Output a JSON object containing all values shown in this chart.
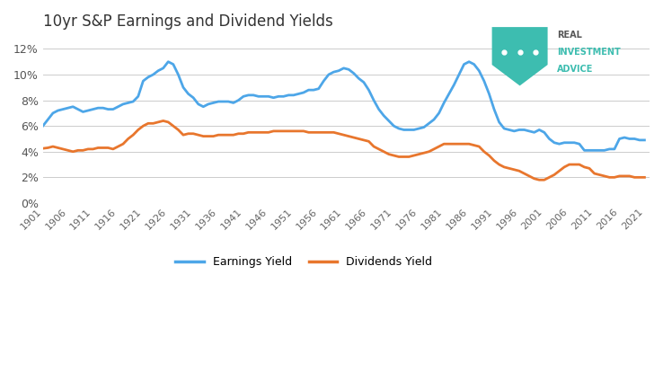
{
  "title": "10yr S&P Earnings and Dividend Yields",
  "background_color": "#ffffff",
  "plot_bg_color": "#ffffff",
  "grid_color": "#cccccc",
  "earnings_color": "#4da6e8",
  "dividends_color": "#e8762d",
  "ylim": [
    0,
    0.13
  ],
  "yticks": [
    0,
    0.02,
    0.04,
    0.06,
    0.08,
    0.1,
    0.12
  ],
  "ytick_labels": [
    "0%",
    "2%",
    "4%",
    "6%",
    "8%",
    "10%",
    "12%"
  ],
  "xtick_years": [
    1901,
    1906,
    1911,
    1916,
    1921,
    1926,
    1931,
    1936,
    1941,
    1946,
    1951,
    1956,
    1961,
    1966,
    1971,
    1976,
    1981,
    1986,
    1991,
    1996,
    2001,
    2006,
    2011,
    2016,
    2021
  ],
  "earnings_yield_years": [
    1901,
    1902,
    1903,
    1904,
    1905,
    1906,
    1907,
    1908,
    1909,
    1910,
    1911,
    1912,
    1913,
    1914,
    1915,
    1916,
    1917,
    1918,
    1919,
    1920,
    1921,
    1922,
    1923,
    1924,
    1925,
    1926,
    1927,
    1928,
    1929,
    1930,
    1931,
    1932,
    1933,
    1934,
    1935,
    1936,
    1937,
    1938,
    1939,
    1940,
    1941,
    1942,
    1943,
    1944,
    1945,
    1946,
    1947,
    1948,
    1949,
    1950,
    1951,
    1952,
    1953,
    1954,
    1955,
    1956,
    1957,
    1958,
    1959,
    1960,
    1961,
    1962,
    1963,
    1964,
    1965,
    1966,
    1967,
    1968,
    1969,
    1970,
    1971,
    1972,
    1973,
    1974,
    1975,
    1976,
    1977,
    1978,
    1979,
    1980,
    1981,
    1982,
    1983,
    1984,
    1985,
    1986,
    1987,
    1988,
    1989,
    1990,
    1991,
    1992,
    1993,
    1994,
    1995,
    1996,
    1997,
    1998,
    1999,
    2000,
    2001,
    2002,
    2003,
    2004,
    2005,
    2006,
    2007,
    2008,
    2009,
    2010,
    2011,
    2012,
    2013,
    2014,
    2015,
    2016,
    2017,
    2018,
    2019,
    2020,
    2021
  ],
  "earnings_yield_values": [
    0.06,
    0.065,
    0.07,
    0.072,
    0.073,
    0.074,
    0.075,
    0.073,
    0.071,
    0.072,
    0.073,
    0.074,
    0.074,
    0.073,
    0.073,
    0.075,
    0.077,
    0.078,
    0.079,
    0.083,
    0.095,
    0.098,
    0.1,
    0.103,
    0.105,
    0.11,
    0.108,
    0.1,
    0.09,
    0.085,
    0.082,
    0.077,
    0.075,
    0.077,
    0.078,
    0.079,
    0.079,
    0.079,
    0.078,
    0.08,
    0.083,
    0.084,
    0.084,
    0.083,
    0.083,
    0.083,
    0.082,
    0.083,
    0.083,
    0.084,
    0.084,
    0.085,
    0.086,
    0.088,
    0.088,
    0.089,
    0.095,
    0.1,
    0.102,
    0.103,
    0.105,
    0.104,
    0.101,
    0.097,
    0.094,
    0.088,
    0.08,
    0.073,
    0.068,
    0.064,
    0.06,
    0.058,
    0.057,
    0.057,
    0.057,
    0.058,
    0.059,
    0.062,
    0.065,
    0.07,
    0.078,
    0.085,
    0.092,
    0.1,
    0.108,
    0.11,
    0.108,
    0.103,
    0.095,
    0.085,
    0.073,
    0.063,
    0.058,
    0.057,
    0.056,
    0.057,
    0.057,
    0.056,
    0.055,
    0.057,
    0.055,
    0.05,
    0.047,
    0.046,
    0.047,
    0.047,
    0.047,
    0.046,
    0.041,
    0.041,
    0.041,
    0.041,
    0.041,
    0.042,
    0.042,
    0.05,
    0.051,
    0.05,
    0.05,
    0.049,
    0.049
  ],
  "dividends_yield_years": [
    1901,
    1902,
    1903,
    1904,
    1905,
    1906,
    1907,
    1908,
    1909,
    1910,
    1911,
    1912,
    1913,
    1914,
    1915,
    1916,
    1917,
    1918,
    1919,
    1920,
    1921,
    1922,
    1923,
    1924,
    1925,
    1926,
    1927,
    1928,
    1929,
    1930,
    1931,
    1932,
    1933,
    1934,
    1935,
    1936,
    1937,
    1938,
    1939,
    1940,
    1941,
    1942,
    1943,
    1944,
    1945,
    1946,
    1947,
    1948,
    1949,
    1950,
    1951,
    1952,
    1953,
    1954,
    1955,
    1956,
    1957,
    1958,
    1959,
    1960,
    1961,
    1962,
    1963,
    1964,
    1965,
    1966,
    1967,
    1968,
    1969,
    1970,
    1971,
    1972,
    1973,
    1974,
    1975,
    1976,
    1977,
    1978,
    1979,
    1980,
    1981,
    1982,
    1983,
    1984,
    1985,
    1986,
    1987,
    1988,
    1989,
    1990,
    1991,
    1992,
    1993,
    1994,
    1995,
    1996,
    1997,
    1998,
    1999,
    2000,
    2001,
    2002,
    2003,
    2004,
    2005,
    2006,
    2007,
    2008,
    2009,
    2010,
    2011,
    2012,
    2013,
    2014,
    2015,
    2016,
    2017,
    2018,
    2019,
    2020,
    2021
  ],
  "dividends_yield_values": [
    0.0425,
    0.043,
    0.044,
    0.043,
    0.042,
    0.041,
    0.04,
    0.041,
    0.041,
    0.042,
    0.042,
    0.043,
    0.043,
    0.043,
    0.042,
    0.044,
    0.046,
    0.05,
    0.053,
    0.057,
    0.06,
    0.062,
    0.062,
    0.063,
    0.064,
    0.063,
    0.06,
    0.057,
    0.053,
    0.054,
    0.054,
    0.053,
    0.052,
    0.052,
    0.052,
    0.053,
    0.053,
    0.053,
    0.053,
    0.054,
    0.054,
    0.055,
    0.055,
    0.055,
    0.055,
    0.055,
    0.056,
    0.056,
    0.056,
    0.056,
    0.056,
    0.056,
    0.056,
    0.055,
    0.055,
    0.055,
    0.055,
    0.055,
    0.055,
    0.054,
    0.053,
    0.052,
    0.051,
    0.05,
    0.049,
    0.048,
    0.044,
    0.042,
    0.04,
    0.038,
    0.037,
    0.036,
    0.036,
    0.036,
    0.037,
    0.038,
    0.039,
    0.04,
    0.042,
    0.044,
    0.046,
    0.046,
    0.046,
    0.046,
    0.046,
    0.046,
    0.045,
    0.044,
    0.04,
    0.037,
    0.033,
    0.03,
    0.028,
    0.027,
    0.026,
    0.025,
    0.023,
    0.021,
    0.019,
    0.018,
    0.018,
    0.02,
    0.022,
    0.025,
    0.028,
    0.03,
    0.03,
    0.03,
    0.028,
    0.027,
    0.023,
    0.022,
    0.021,
    0.02,
    0.02,
    0.021,
    0.021,
    0.021,
    0.02,
    0.02,
    0.02
  ],
  "logo_shield_color": "#3dbdb0",
  "logo_text1": "REAL",
  "logo_text2": "INVESTMENT",
  "logo_text3": "ADVICE",
  "logo_text1_color": "#555555",
  "logo_text23_color": "#3dbdb0",
  "legend_earnings": "Earnings Yield",
  "legend_dividends": "Dividends Yield"
}
